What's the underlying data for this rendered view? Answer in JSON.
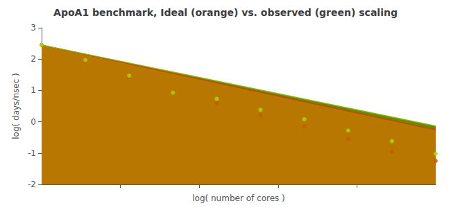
{
  "chart_data": {
    "type": "scatter",
    "title": "ApoA1 benchmark, Ideal (orange) vs. observed (green) scaling",
    "x_label": "log( number of cores )",
    "y_label": "log( days/nsec )",
    "xlim": [
      0,
      2.709269960975831
    ],
    "xticks": [
      0.5418539921951662,
      1.0837079843903323,
      1.6255619765854985,
      2.1674159687806647
    ],
    "ylim": [
      -2,
      3
    ],
    "yticks": [
      -2,
      -1,
      0,
      1,
      2,
      3
    ],
    "tick_labels": "y",
    "grid": false,
    "series": [
      {
        "type": "area",
        "color": "#6a8800",
        "x": [
          0,
          2.709269960975831
        ],
        "values": [
          2.45,
          -0.1373528127319186
        ]
      },
      {
        "type": "area",
        "color": "#b87800",
        "x": [
          0,
          2.709269960975831
        ],
        "values": [
          2.45,
          -0.259269960975831
        ]
      },
      {
        "type": "line",
        "color": "#cc4400",
        "x": [
          0,
          2.709269960975831
        ],
        "values": [
          2.45,
          -0.259269960975831
        ]
      },
      {
        "type": "line",
        "color": "#88bb00",
        "x": [
          0,
          2.709269960975831
        ],
        "values": [
          2.45,
          -0.1373528127319186
        ]
      },
      {
        "type": "scatter",
        "color": "#cc5500",
        "x": [
          0.0,
          0.301,
          0.602,
          0.903,
          1.204,
          1.505,
          1.806,
          2.107,
          2.408,
          2.709
        ],
        "values": [
          2.45,
          1.95,
          1.45,
          0.95,
          0.6,
          0.2,
          -0.15,
          -0.55,
          -0.95,
          -1.25
        ]
      },
      {
        "type": "scatter",
        "color": "#aadd00",
        "x": [
          0.0,
          0.301,
          0.602,
          0.903,
          1.204,
          1.505,
          1.806,
          2.107,
          2.408,
          2.709
        ],
        "values": [
          2.45,
          1.97,
          1.47,
          0.93,
          0.73,
          0.38,
          0.08,
          -0.28,
          -0.62,
          -1.02
        ]
      }
    ]
  }
}
